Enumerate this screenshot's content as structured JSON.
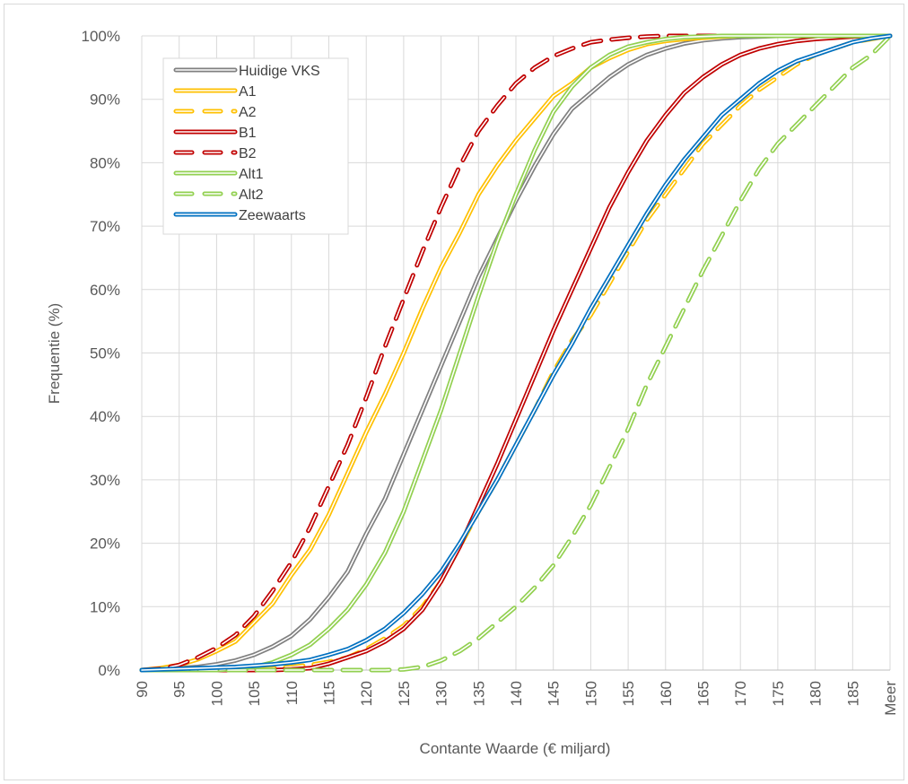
{
  "chart_data": {
    "type": "line",
    "xlabel": "Contante Waarde (€ miljard)",
    "ylabel": "Frequentie (%)",
    "x_categories": [
      "90",
      "92",
      "95",
      "97",
      "100",
      "102",
      "105",
      "107",
      "110",
      "112",
      "115",
      "117",
      "120",
      "122",
      "125",
      "127",
      "130",
      "132",
      "135",
      "137",
      "140",
      "142",
      "145",
      "147",
      "150",
      "152",
      "155",
      "157",
      "160",
      "162",
      "165",
      "167",
      "170",
      "172",
      "175",
      "177",
      "180",
      "182",
      "185",
      "187",
      "Meer"
    ],
    "x_tick_labels": [
      "90",
      "95",
      "100",
      "105",
      "110",
      "115",
      "120",
      "125",
      "130",
      "135",
      "140",
      "145",
      "150",
      "155",
      "160",
      "165",
      "170",
      "175",
      "180",
      "185",
      "Meer"
    ],
    "y_ticks": [
      "0%",
      "10%",
      "20%",
      "30%",
      "40%",
      "50%",
      "60%",
      "70%",
      "80%",
      "90%",
      "100%"
    ],
    "ylim": [
      0,
      100
    ],
    "grid": true,
    "legend_position": "top-left",
    "series": [
      {
        "name": "Huidige VKS",
        "color": "#808080",
        "dash": "solid",
        "values": [
          0,
          0.1,
          0.3,
          0.5,
          0.9,
          1.5,
          2.4,
          3.7,
          5.4,
          8,
          11.5,
          15.5,
          21.5,
          27,
          34,
          41,
          48,
          55,
          62,
          68,
          74,
          79.5,
          84.5,
          88.5,
          91,
          93.5,
          95.5,
          97,
          98,
          98.8,
          99.3,
          99.6,
          99.8,
          99.9,
          100,
          100,
          100,
          100,
          100,
          100,
          100
        ]
      },
      {
        "name": "A1",
        "color": "#ffc000",
        "dash": "solid",
        "values": [
          0,
          0.3,
          0.8,
          1.7,
          3,
          4.5,
          7.5,
          10.5,
          15,
          19,
          24.5,
          31,
          37.5,
          43.5,
          50,
          57,
          63.5,
          69,
          75,
          79.5,
          83.5,
          87,
          90.5,
          92.5,
          95,
          96.5,
          97.8,
          98.7,
          99.2,
          99.5,
          99.7,
          99.9,
          100,
          100,
          100,
          100,
          100,
          100,
          100,
          100,
          100
        ]
      },
      {
        "name": "A2",
        "color": "#ffc000",
        "dash": "dash",
        "values": [
          0,
          0,
          0,
          0,
          0,
          0.1,
          0.2,
          0.3,
          0.5,
          0.8,
          1.3,
          2,
          3.3,
          5,
          7,
          10,
          14,
          19.5,
          25,
          30,
          35.5,
          41,
          47,
          52,
          56,
          61,
          66,
          71,
          75,
          79,
          83,
          86,
          89,
          91.5,
          93.5,
          95.5,
          97,
          98,
          99,
          99.5,
          100
        ]
      },
      {
        "name": "B1",
        "color": "#c00000",
        "dash": "solid",
        "values": [
          0,
          0,
          0,
          0,
          0,
          0,
          0,
          0,
          0.1,
          0.3,
          1,
          2,
          3,
          4.5,
          6.5,
          9.5,
          14,
          19.5,
          26,
          32.5,
          39.5,
          46.5,
          53.5,
          60,
          66.5,
          73,
          78.5,
          83.5,
          87.5,
          91,
          93.5,
          95.5,
          97,
          98,
          98.7,
          99.2,
          99.5,
          99.7,
          99.9,
          100,
          100
        ]
      },
      {
        "name": "B2",
        "color": "#c00000",
        "dash": "dash",
        "values": [
          0,
          0.2,
          0.8,
          2,
          3.5,
          5.5,
          8.5,
          12.5,
          17,
          22.5,
          29,
          35.5,
          43,
          51,
          58.5,
          66,
          73,
          79.5,
          85,
          89,
          92.5,
          95,
          96.8,
          98,
          99,
          99.4,
          99.7,
          99.9,
          100,
          100,
          100,
          100,
          100,
          100,
          100,
          100,
          100,
          100,
          100,
          100,
          100
        ]
      },
      {
        "name": "Alt1",
        "color": "#92d050",
        "dash": "solid",
        "values": [
          0,
          0,
          0,
          0,
          0,
          0.2,
          0.5,
          1.2,
          2.4,
          4,
          6.5,
          9.5,
          13.5,
          18.5,
          25,
          33,
          41,
          50,
          59,
          67.5,
          75,
          82,
          88,
          92,
          95,
          97,
          98.3,
          99,
          99.5,
          99.8,
          99.9,
          100,
          100,
          100,
          100,
          100,
          100,
          100,
          100,
          100,
          100
        ]
      },
      {
        "name": "Alt2",
        "color": "#92d050",
        "dash": "dash",
        "values": [
          0,
          0,
          0,
          0,
          0,
          0,
          0,
          0,
          0,
          0,
          0,
          0,
          0,
          0,
          0.1,
          0.5,
          1.5,
          3,
          5,
          7.5,
          10,
          13,
          16.5,
          21,
          26,
          32,
          38,
          45,
          51,
          57,
          63,
          68.5,
          74,
          79,
          83,
          86,
          89,
          92,
          95,
          97,
          100
        ]
      },
      {
        "name": "Zeewaarts",
        "color": "#0070c0",
        "dash": "solid",
        "values": [
          0,
          0.1,
          0.2,
          0.3,
          0.4,
          0.5,
          0.7,
          0.9,
          1.2,
          1.6,
          2.4,
          3.3,
          4.7,
          6.5,
          9,
          12,
          15.5,
          20,
          25,
          30,
          35.5,
          41,
          46.5,
          51.5,
          57,
          62,
          67,
          72,
          76.5,
          80.5,
          84,
          87.5,
          90,
          92.5,
          94.5,
          96,
          97,
          98,
          99,
          99.6,
          100
        ]
      }
    ]
  }
}
